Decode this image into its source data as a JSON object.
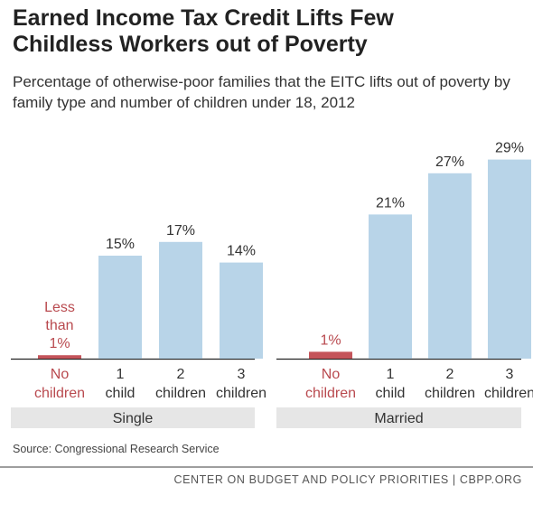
{
  "title_line1": "Earned Income Tax Credit Lifts Few",
  "title_line2": "Childless Workers out of Poverty",
  "subtitle": "Percentage of otherwise-poor families that the EITC lifts out of poverty by family type and number of children under 18, 2012",
  "source": "Source: Congressional Research Service",
  "footer": "CENTER ON BUDGET AND POLICY PRIORITIES | CBPP.ORG",
  "colors": {
    "bar": "#b8d4e8",
    "highlight": "#c4545a",
    "highlight_text": "#b94a4f",
    "text": "#333333",
    "group_bar": "#e6e6e6"
  },
  "chart_data": {
    "type": "bar",
    "title": "",
    "xlabel": "",
    "ylabel": "",
    "ylim": [
      0,
      30
    ],
    "groups": [
      {
        "name": "Single",
        "categories": [
          [
            "No",
            "children"
          ],
          [
            "1",
            "child"
          ],
          [
            "2",
            "children"
          ],
          [
            "3",
            "children"
          ]
        ],
        "values": [
          0.5,
          15,
          17,
          14
        ],
        "labels": [
          [
            "Less",
            "than",
            "1%"
          ],
          [
            "15%"
          ],
          [
            "17%"
          ],
          [
            "14%"
          ]
        ],
        "highlight": [
          true,
          false,
          false,
          false
        ]
      },
      {
        "name": "Married",
        "categories": [
          [
            "No",
            "children"
          ],
          [
            "1",
            "child"
          ],
          [
            "2",
            "children"
          ],
          [
            "3",
            "children"
          ]
        ],
        "values": [
          1,
          21,
          27,
          29
        ],
        "labels": [
          [
            "1%"
          ],
          [
            "21%"
          ],
          [
            "27%"
          ],
          [
            "29%"
          ]
        ],
        "highlight": [
          true,
          false,
          false,
          false
        ]
      }
    ]
  }
}
